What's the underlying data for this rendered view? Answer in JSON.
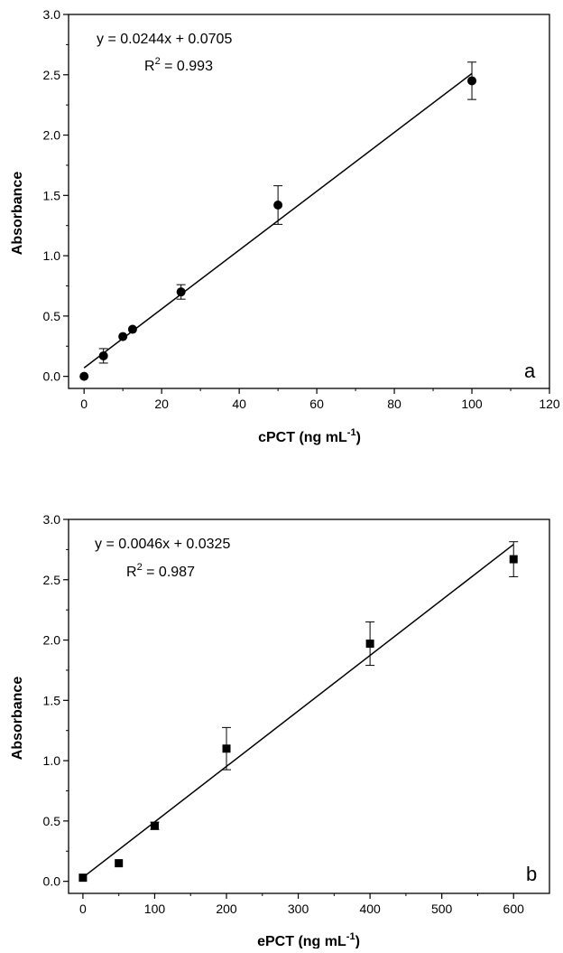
{
  "chart_data": [
    {
      "type": "scatter",
      "panel_label": "a",
      "xlabel": "cPCT (ng mL",
      "xlabel_sup": "-1",
      "xlabel_end": ")",
      "ylabel": "Absorbance",
      "xlim": [
        -4,
        120
      ],
      "ylim": [
        -0.1,
        3.0
      ],
      "xticks": [
        0,
        20,
        40,
        60,
        80,
        100,
        120
      ],
      "yticks": [
        0.0,
        0.5,
        1.0,
        1.5,
        2.0,
        2.5,
        3.0
      ],
      "xtick_labels": [
        "0",
        "20",
        "40",
        "60",
        "80",
        "100",
        "120"
      ],
      "ytick_labels": [
        "0.0",
        "0.5",
        "1.0",
        "1.5",
        "2.0",
        "2.5",
        "3.0"
      ],
      "marker": "circle",
      "points": [
        {
          "x": 0,
          "y": 0.0,
          "err": 0.0
        },
        {
          "x": 5,
          "y": 0.17,
          "err": 0.06
        },
        {
          "x": 10,
          "y": 0.33,
          "err": 0.0
        },
        {
          "x": 12.5,
          "y": 0.39,
          "err": 0.0
        },
        {
          "x": 25,
          "y": 0.7,
          "err": 0.06
        },
        {
          "x": 50,
          "y": 1.42,
          "err": 0.16
        },
        {
          "x": 100,
          "y": 2.45,
          "err": 0.155
        }
      ],
      "fit": {
        "slope": 0.0244,
        "intercept": 0.0705,
        "x_range": [
          0,
          100
        ]
      },
      "equation_text": "y = 0.0244x + 0.0705",
      "r2_prefix": "R",
      "r2_sup": "2",
      "r2_value": " = 0.993",
      "grid": false
    },
    {
      "type": "scatter",
      "panel_label": "b",
      "xlabel": "ePCT (ng mL",
      "xlabel_sup": "-1",
      "xlabel_end": ")",
      "ylabel": "Absorbance",
      "xlim": [
        -20,
        650
      ],
      "ylim": [
        -0.1,
        3.0
      ],
      "xticks": [
        0,
        100,
        200,
        300,
        400,
        500,
        600
      ],
      "yticks": [
        0.0,
        0.5,
        1.0,
        1.5,
        2.0,
        2.5,
        3.0
      ],
      "xtick_labels": [
        "0",
        "100",
        "200",
        "300",
        "400",
        "500",
        "600"
      ],
      "ytick_labels": [
        "0.0",
        "0.5",
        "1.0",
        "1.5",
        "2.0",
        "2.5",
        "3.0"
      ],
      "marker": "square",
      "points": [
        {
          "x": 0,
          "y": 0.03,
          "err": 0.0
        },
        {
          "x": 50,
          "y": 0.15,
          "err": 0.0
        },
        {
          "x": 100,
          "y": 0.46,
          "err": 0.03
        },
        {
          "x": 200,
          "y": 1.1,
          "err": 0.175
        },
        {
          "x": 400,
          "y": 1.97,
          "err": 0.18
        },
        {
          "x": 600,
          "y": 2.67,
          "err": 0.145
        }
      ],
      "fit": {
        "slope": 0.0046,
        "intercept": 0.0325,
        "x_range": [
          0,
          600
        ]
      },
      "equation_text": "y = 0.0046x + 0.0325",
      "r2_prefix": "R",
      "r2_sup": "2",
      "r2_value": " = 0.987",
      "grid": false
    }
  ]
}
